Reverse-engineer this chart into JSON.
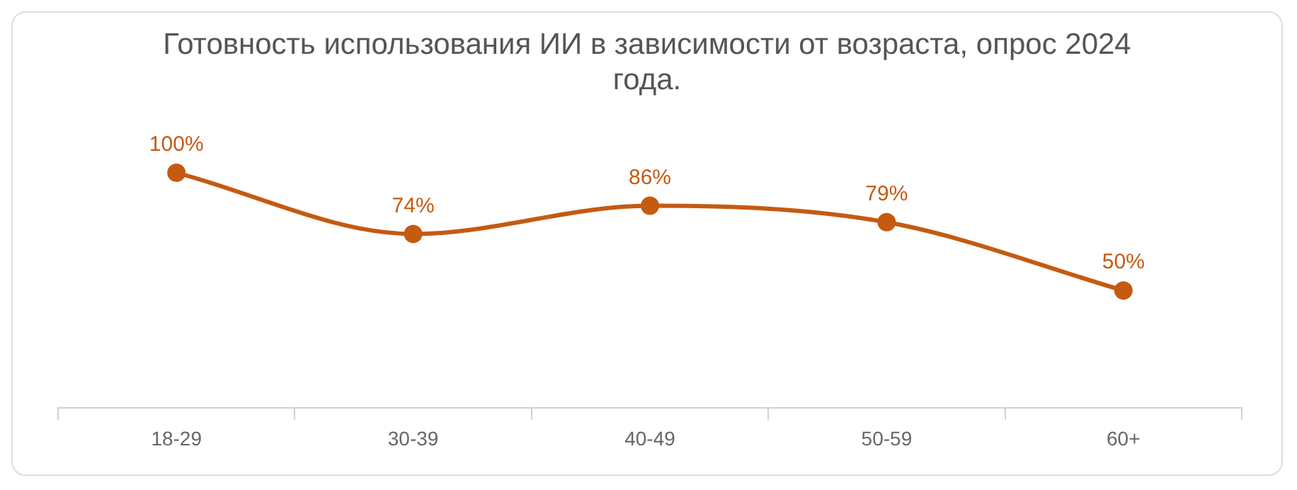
{
  "chart_data": {
    "type": "line",
    "title": "Готовность использования ИИ в зависимости от возраста, опрос 2024 года.",
    "categories": [
      "18-29",
      "30-39",
      "40-49",
      "50-59",
      "60+"
    ],
    "values": [
      100,
      74,
      86,
      79,
      50
    ],
    "value_labels": [
      "100%",
      "74%",
      "86%",
      "79%",
      "50%"
    ],
    "color": "#c55a11",
    "marker": "circle",
    "line_style": "solid",
    "legend": false
  }
}
